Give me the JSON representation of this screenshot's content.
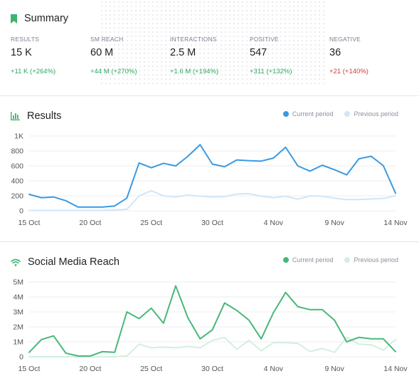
{
  "summary": {
    "title": "Summary",
    "metrics": [
      {
        "label": "RESULTS",
        "value": "15 K",
        "change": "+11 K",
        "pct": "(+264%)",
        "trend": "positive"
      },
      {
        "label": "SM REACH",
        "value": "60 M",
        "change": "+44 M",
        "pct": "(+270%)",
        "trend": "positive"
      },
      {
        "label": "INTERACTIONS",
        "value": "2.5 M",
        "change": "+1.6 M",
        "pct": "(+194%)",
        "trend": "positive"
      },
      {
        "label": "POSITIVE",
        "value": "547",
        "change": "+311",
        "pct": "(+132%)",
        "trend": "positive"
      },
      {
        "label": "NEGATIVE",
        "value": "36",
        "change": "+21",
        "pct": "(+140%)",
        "trend": "negative"
      }
    ]
  },
  "colors": {
    "results_current": "#3a9ae4",
    "results_previous": "#cfe6fb",
    "reach_current": "#48b879",
    "reach_previous": "#d3efdf",
    "summary_icon": "#3cb371"
  },
  "results": {
    "title": "Results",
    "icon": "bar-chart-icon",
    "legend": {
      "current": "Current period",
      "previous": "Previous period"
    }
  },
  "reach": {
    "title": "Social Media Reach",
    "icon": "wifi-icon",
    "legend": {
      "current": "Current period",
      "previous": "Previous period"
    }
  },
  "chart_data": [
    {
      "type": "line",
      "title": "Results",
      "x_ticks": [
        "15 Oct",
        "20 Oct",
        "25 Oct",
        "30 Oct",
        "4 Nov",
        "9 Nov",
        "14 Nov"
      ],
      "y_ticks": [
        "0",
        "200",
        "400",
        "600",
        "800",
        "1K"
      ],
      "ylim": [
        0,
        1000
      ],
      "grid": true,
      "legend_position": "top-right",
      "series": [
        {
          "name": "Current period",
          "values": [
            220,
            175,
            185,
            135,
            50,
            50,
            50,
            65,
            170,
            640,
            575,
            635,
            600,
            730,
            885,
            625,
            590,
            680,
            670,
            665,
            705,
            850,
            600,
            530,
            610,
            550,
            480,
            695,
            730,
            605,
            235
          ]
        },
        {
          "name": "Previous period",
          "values": [
            5,
            5,
            5,
            5,
            5,
            5,
            5,
            10,
            20,
            200,
            270,
            200,
            185,
            210,
            195,
            185,
            190,
            225,
            230,
            195,
            175,
            195,
            155,
            200,
            195,
            170,
            150,
            150,
            160,
            165,
            200
          ]
        }
      ]
    },
    {
      "type": "line",
      "title": "Social Media Reach",
      "x_ticks": [
        "15 Oct",
        "20 Oct",
        "25 Oct",
        "30 Oct",
        "4 Nov",
        "9 Nov",
        "14 Nov"
      ],
      "y_ticks": [
        "0",
        "1M",
        "2M",
        "3M",
        "4M",
        "5M"
      ],
      "ylim": [
        0,
        5000000
      ],
      "grid": true,
      "legend_position": "top-right",
      "series": [
        {
          "name": "Current period",
          "values": [
            300000,
            1150000,
            1400000,
            250000,
            50000,
            50000,
            350000,
            300000,
            3000000,
            2550000,
            3250000,
            2250000,
            4750000,
            2600000,
            1200000,
            1800000,
            3600000,
            3100000,
            2450000,
            1200000,
            2950000,
            4300000,
            3350000,
            3150000,
            3150000,
            2450000,
            1000000,
            1300000,
            1200000,
            1200000,
            350000
          ]
        },
        {
          "name": "Previous period",
          "values": [
            0,
            0,
            0,
            0,
            0,
            0,
            0,
            0,
            50000,
            850000,
            600000,
            650000,
            600000,
            700000,
            600000,
            1100000,
            1300000,
            500000,
            1100000,
            400000,
            950000,
            950000,
            900000,
            350000,
            550000,
            300000,
            1300000,
            850000,
            800000,
            450000,
            1150000
          ]
        }
      ]
    }
  ]
}
